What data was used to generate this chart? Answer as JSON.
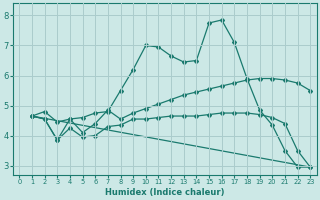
{
  "xlabel": "Humidex (Indice chaleur)",
  "background_color": "#cce8e6",
  "grid_color": "#aacccc",
  "line_color": "#1a7a6e",
  "xlim": [
    -0.5,
    23.5
  ],
  "ylim": [
    2.7,
    8.4
  ],
  "xticks": [
    0,
    1,
    2,
    3,
    4,
    5,
    6,
    7,
    8,
    9,
    10,
    11,
    12,
    13,
    14,
    15,
    16,
    17,
    18,
    19,
    20,
    21,
    22,
    23
  ],
  "yticks": [
    3,
    4,
    5,
    6,
    7,
    8
  ],
  "line1_x": [
    1,
    2,
    3,
    4,
    5,
    6,
    7,
    8,
    9,
    10,
    11,
    12,
    13,
    14,
    15,
    16,
    17,
    18,
    19,
    20,
    21,
    22,
    23
  ],
  "line1_y": [
    4.65,
    4.8,
    4.45,
    4.55,
    4.6,
    4.75,
    4.8,
    5.5,
    6.2,
    7.0,
    6.95,
    6.65,
    6.45,
    6.5,
    7.75,
    7.85,
    7.1,
    5.9,
    4.85,
    4.35,
    3.5,
    2.95,
    2.95
  ],
  "line2_x": [
    1,
    2,
    3,
    4,
    5,
    6,
    7,
    8,
    9,
    10,
    11,
    12,
    13,
    14,
    15,
    16,
    17,
    18,
    19,
    20,
    21,
    22,
    23
  ],
  "line2_y": [
    4.65,
    4.55,
    3.85,
    4.55,
    4.1,
    4.4,
    4.85,
    4.55,
    4.75,
    4.9,
    5.05,
    5.2,
    5.35,
    5.45,
    5.55,
    5.65,
    5.75,
    5.85,
    5.9,
    5.9,
    5.85,
    5.75,
    5.5
  ],
  "line3_x": [
    1,
    2,
    3,
    4,
    5,
    6,
    7,
    8,
    9,
    10,
    11,
    12,
    13,
    14,
    15,
    16,
    17,
    18,
    19,
    20,
    21,
    22,
    23
  ],
  "line3_y": [
    4.65,
    4.55,
    3.85,
    4.25,
    3.95,
    4.0,
    4.3,
    4.35,
    4.55,
    4.55,
    4.6,
    4.65,
    4.65,
    4.65,
    4.7,
    4.75,
    4.75,
    4.75,
    4.7,
    4.6,
    4.4,
    3.5,
    2.95
  ],
  "line4_x": [
    1,
    23
  ],
  "line4_y": [
    4.65,
    2.95
  ]
}
